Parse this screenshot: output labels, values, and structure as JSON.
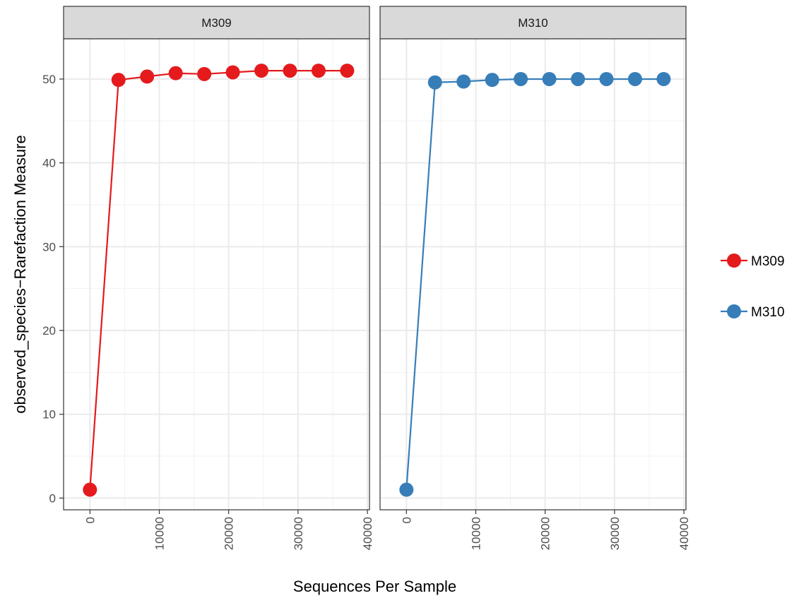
{
  "chart_data": {
    "type": "line",
    "xlabel": "Sequences Per Sample",
    "ylabel": "observed_species−Rarefaction Measure",
    "xlim": [
      -3800,
      40300
    ],
    "ylim": [
      -1.4,
      54.8
    ],
    "x_ticks": [
      0,
      10000,
      20000,
      30000,
      40000
    ],
    "x_tick_labels": [
      "0",
      "10000",
      "20000",
      "30000",
      "40000"
    ],
    "y_ticks": [
      0,
      10,
      20,
      30,
      40,
      50
    ],
    "y_tick_labels": [
      "0",
      "10",
      "20",
      "30",
      "40",
      "50"
    ],
    "grid": true,
    "legend_position": "right",
    "panels": [
      {
        "strip": "M309",
        "series": "M309",
        "color": "#e41a1c",
        "x": [
          1,
          4120,
          8240,
          12360,
          16480,
          20600,
          24720,
          28840,
          32960,
          37080
        ],
        "y": [
          1,
          49.9,
          50.3,
          50.7,
          50.6,
          50.8,
          51.0,
          51.0,
          51.0,
          51.0
        ]
      },
      {
        "strip": "M310",
        "series": "M310",
        "color": "#377eb8",
        "x": [
          1,
          4120,
          8240,
          12360,
          16480,
          20600,
          24720,
          28840,
          32960,
          37080
        ],
        "y": [
          1,
          49.6,
          49.7,
          49.9,
          50.0,
          50.0,
          50.0,
          50.0,
          50.0,
          50.0
        ]
      }
    ],
    "legend": [
      {
        "label": "M309",
        "color": "#e41a1c"
      },
      {
        "label": "M310",
        "color": "#377eb8"
      }
    ]
  }
}
